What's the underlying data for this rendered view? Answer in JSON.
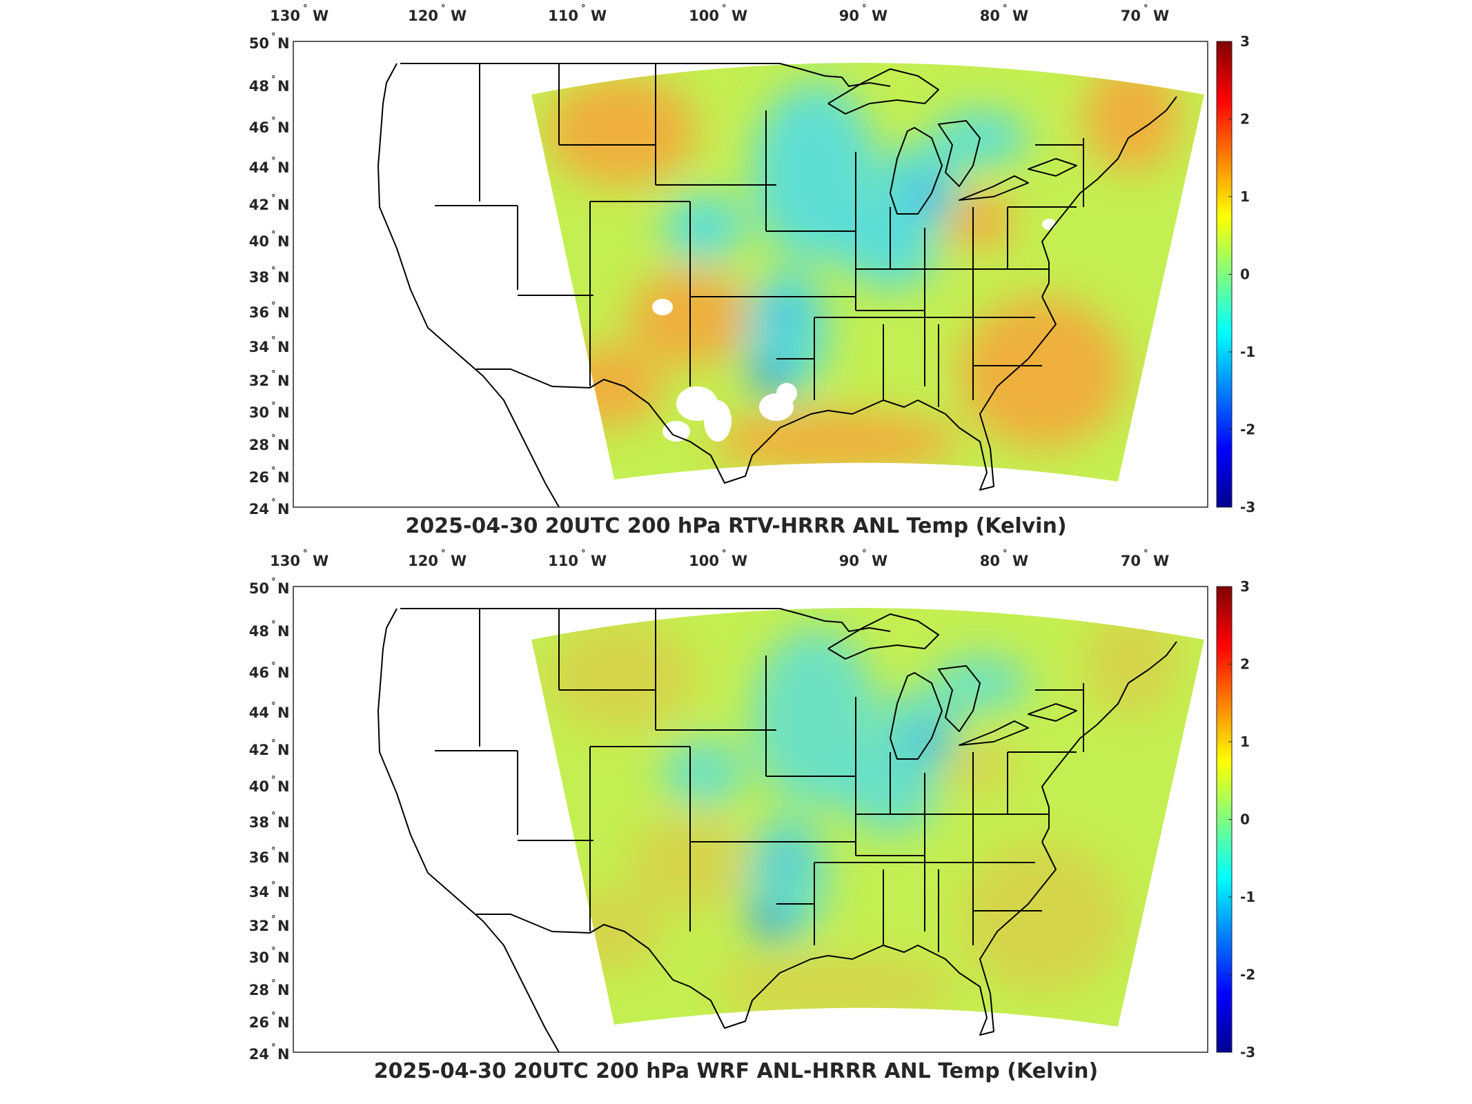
{
  "figure": {
    "panels": [
      {
        "id": "top",
        "title": "2025-04-30 20UTC 200 hPa RTV-HRRR ANL Temp (Kelvin)",
        "field": "RTV-HRRR ANL minus HRRR ANL 200 hPa temperature difference",
        "has_missing_data_patches": true
      },
      {
        "id": "bottom",
        "title": "2025-04-30 20UTC 200 hPa WRF ANL-HRRR ANL Temp (Kelvin)",
        "field": "WRF ANL minus HRRR ANL 200 hPa temperature difference",
        "has_missing_data_patches": false
      }
    ],
    "longitude_ticks": [
      "130 W",
      "120 W",
      "110 W",
      "100 W",
      "90 W",
      "80 W",
      "70 W"
    ],
    "latitude_ticks": [
      "50 N",
      "48 N",
      "46 N",
      "44 N",
      "42 N",
      "40 N",
      "38 N",
      "36 N",
      "34 N",
      "32 N",
      "30 N",
      "28 N",
      "26 N",
      "24 N"
    ],
    "colorbar": {
      "colormap": "jet",
      "range": [
        -3,
        3
      ],
      "ticks": [
        "3",
        "2",
        "1",
        "0",
        "-1",
        "-2",
        "-3"
      ],
      "colors": [
        "#00008f",
        "#0000ff",
        "#0080ff",
        "#00ffff",
        "#80ff80",
        "#ffff00",
        "#ff8000",
        "#ff0000",
        "#800000"
      ]
    },
    "map_colors": {
      "coastline_and_borders": "#000000",
      "field_base": "#c4ef52",
      "warm_anomaly": "#f7a53a",
      "cool_anomaly": "#3fd8ff"
    }
  }
}
